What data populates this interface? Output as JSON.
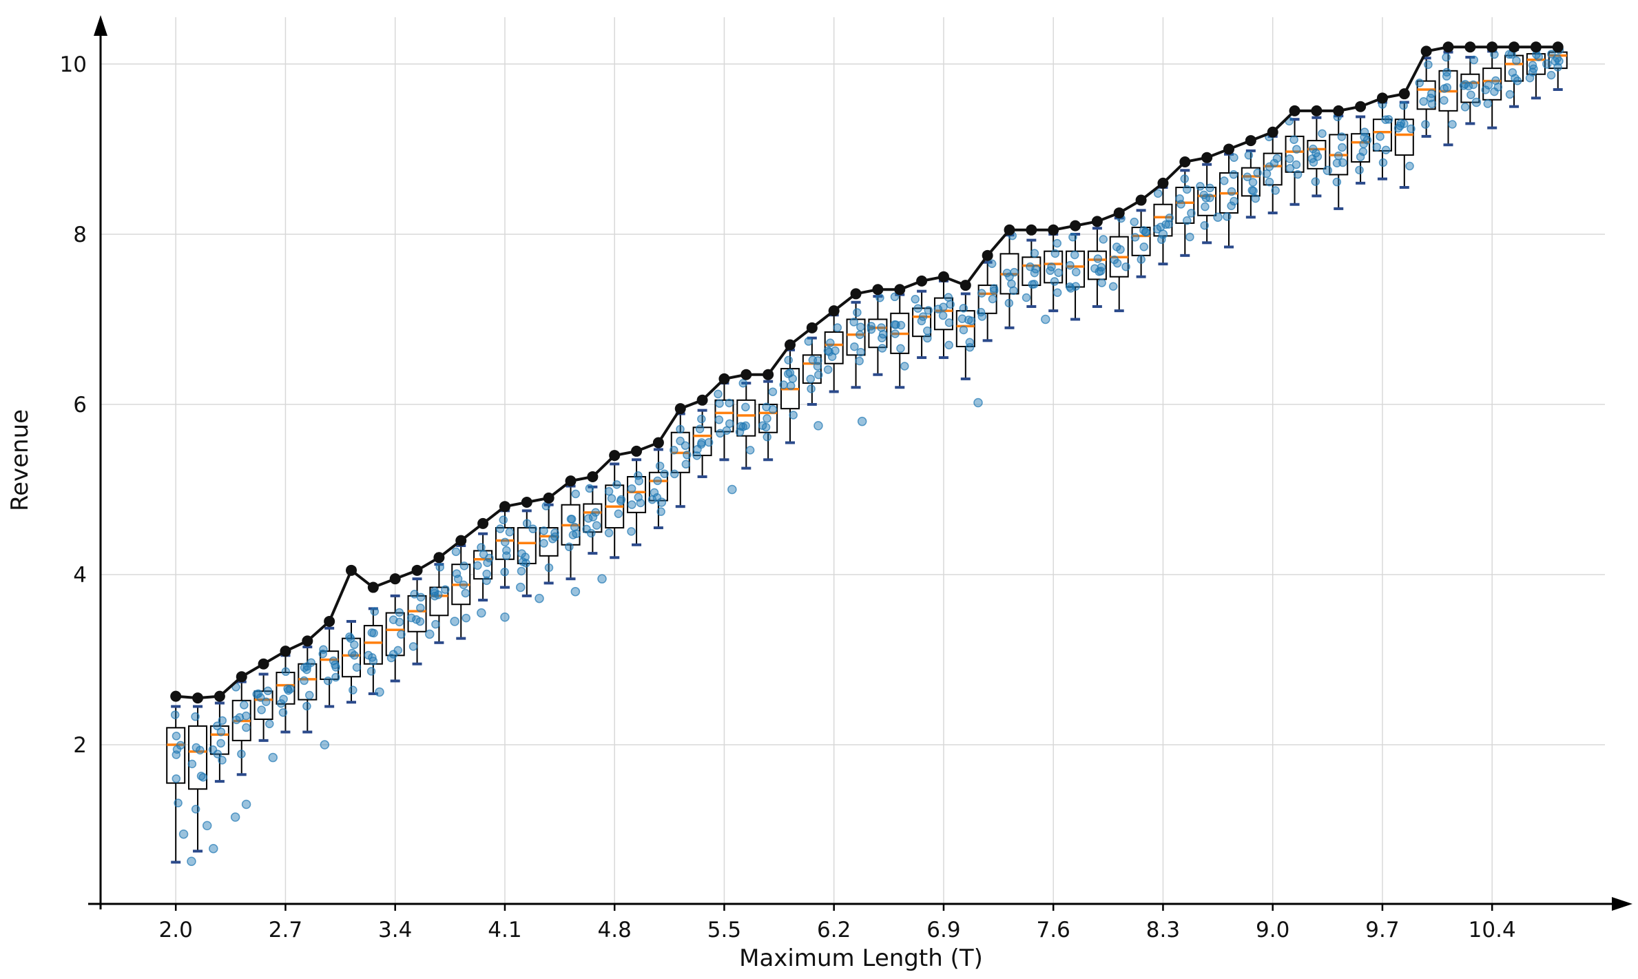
{
  "figure": {
    "background": "#ffffff"
  },
  "chart_data": {
    "type": "boxplot",
    "title": "",
    "xlabel": "Maximum Length (T)",
    "ylabel": "Revenue",
    "grid": true,
    "legend": "none",
    "xlim": [
      1.52,
      11.12
    ],
    "ylim": [
      0.13,
      10.55
    ],
    "x_tick_values": [
      2.0,
      2.7,
      3.4,
      4.1,
      4.8,
      5.5,
      6.2,
      6.9,
      7.6,
      8.3,
      9.0,
      9.7,
      10.4
    ],
    "x_tick_labels": [
      "2.0",
      "2.7",
      "3.4",
      "4.1",
      "4.8",
      "5.5",
      "6.2",
      "6.9",
      "7.6",
      "8.3",
      "9.0",
      "9.7",
      "10.4"
    ],
    "y_tick_values": [
      2,
      4,
      6,
      8,
      10
    ],
    "y_tick_labels": [
      "2",
      "4",
      "6",
      "8",
      "10"
    ],
    "colors": {
      "box_edge": "#000000",
      "box_fill": "#ffffff",
      "median": "#ff7f0e",
      "whisker": "#000000",
      "cap": "#2b4a8b",
      "scatter": "#1f77b4",
      "outlier": "#1f77b4",
      "max_line": "#111111",
      "grid": "#d8d8d8",
      "axis": "#000000"
    },
    "box_columns": [
      "x",
      "whislo",
      "q1",
      "median",
      "q3",
      "whishi"
    ],
    "boxes": [
      [
        2.0,
        0.62,
        1.55,
        2.0,
        2.2,
        2.45
      ],
      [
        2.14,
        0.75,
        1.48,
        1.92,
        2.22,
        2.45
      ],
      [
        2.28,
        1.57,
        1.89,
        2.12,
        2.22,
        2.49
      ],
      [
        2.42,
        1.65,
        2.05,
        2.28,
        2.52,
        2.74
      ],
      [
        2.56,
        2.05,
        2.3,
        2.53,
        2.63,
        2.83
      ],
      [
        2.7,
        2.15,
        2.48,
        2.7,
        2.85,
        3.05
      ],
      [
        2.84,
        2.15,
        2.53,
        2.77,
        2.95,
        3.15
      ],
      [
        2.98,
        2.45,
        2.77,
        3.0,
        3.1,
        3.37
      ],
      [
        3.12,
        2.5,
        2.8,
        3.05,
        3.25,
        3.45
      ],
      [
        3.26,
        2.6,
        2.95,
        3.2,
        3.4,
        3.6
      ],
      [
        3.4,
        2.75,
        3.05,
        3.35,
        3.55,
        3.75
      ],
      [
        3.54,
        2.95,
        3.33,
        3.57,
        3.75,
        3.95
      ],
      [
        3.68,
        3.2,
        3.52,
        3.75,
        3.85,
        4.12
      ],
      [
        3.82,
        3.25,
        3.65,
        3.88,
        4.12,
        4.34
      ],
      [
        3.96,
        3.7,
        3.95,
        4.18,
        4.28,
        4.48
      ],
      [
        4.1,
        3.85,
        4.18,
        4.4,
        4.55,
        4.75
      ],
      [
        4.24,
        3.75,
        4.13,
        4.37,
        4.55,
        4.75
      ],
      [
        4.38,
        3.9,
        4.22,
        4.45,
        4.55,
        4.82
      ],
      [
        4.52,
        3.95,
        4.35,
        4.58,
        4.82,
        5.04
      ],
      [
        4.66,
        4.25,
        4.5,
        4.73,
        4.83,
        5.03
      ],
      [
        4.8,
        4.2,
        4.55,
        4.8,
        5.05,
        5.3
      ],
      [
        4.94,
        4.35,
        4.73,
        4.97,
        5.15,
        5.35
      ],
      [
        5.08,
        4.55,
        4.87,
        5.1,
        5.2,
        5.47
      ],
      [
        5.22,
        4.8,
        5.2,
        5.43,
        5.67,
        5.89
      ],
      [
        5.36,
        5.15,
        5.4,
        5.63,
        5.73,
        5.93
      ],
      [
        5.5,
        5.35,
        5.68,
        5.9,
        6.05,
        6.25
      ],
      [
        5.64,
        5.25,
        5.63,
        5.87,
        6.05,
        6.25
      ],
      [
        5.78,
        5.35,
        5.67,
        5.9,
        6.0,
        6.27
      ],
      [
        5.92,
        5.55,
        5.95,
        6.18,
        6.42,
        6.64
      ],
      [
        6.06,
        6.0,
        6.25,
        6.48,
        6.58,
        6.78
      ],
      [
        6.2,
        6.15,
        6.48,
        6.7,
        6.85,
        7.05
      ],
      [
        6.34,
        6.2,
        6.58,
        6.82,
        7.0,
        7.2
      ],
      [
        6.48,
        6.35,
        6.67,
        6.9,
        7.0,
        7.27
      ],
      [
        6.62,
        6.2,
        6.6,
        6.83,
        7.07,
        7.29
      ],
      [
        6.76,
        6.55,
        6.8,
        7.03,
        7.13,
        7.33
      ],
      [
        6.9,
        6.55,
        6.88,
        7.1,
        7.25,
        7.45
      ],
      [
        7.04,
        6.3,
        6.68,
        6.92,
        7.1,
        7.3
      ],
      [
        7.18,
        6.75,
        7.07,
        7.3,
        7.4,
        7.67
      ],
      [
        7.32,
        6.9,
        7.3,
        7.53,
        7.77,
        7.99
      ],
      [
        7.46,
        7.15,
        7.4,
        7.63,
        7.73,
        7.93
      ],
      [
        7.6,
        7.1,
        7.43,
        7.65,
        7.8,
        8.0
      ],
      [
        7.74,
        7.0,
        7.38,
        7.62,
        7.8,
        8.0
      ],
      [
        7.88,
        7.15,
        7.47,
        7.7,
        7.8,
        8.07
      ],
      [
        8.02,
        7.1,
        7.5,
        7.73,
        7.97,
        8.19
      ],
      [
        8.16,
        7.5,
        7.75,
        7.98,
        8.08,
        8.28
      ],
      [
        8.3,
        7.65,
        7.98,
        8.2,
        8.35,
        8.55
      ],
      [
        8.44,
        7.75,
        8.13,
        8.37,
        8.55,
        8.75
      ],
      [
        8.58,
        7.9,
        8.22,
        8.45,
        8.55,
        8.82
      ],
      [
        8.72,
        7.85,
        8.25,
        8.48,
        8.72,
        8.94
      ],
      [
        8.86,
        8.2,
        8.45,
        8.68,
        8.78,
        8.98
      ],
      [
        9.0,
        8.25,
        8.58,
        8.8,
        8.95,
        9.15
      ],
      [
        9.14,
        8.35,
        8.73,
        8.97,
        9.15,
        9.35
      ],
      [
        9.28,
        8.45,
        8.77,
        9.0,
        9.1,
        9.37
      ],
      [
        9.42,
        8.3,
        8.7,
        8.93,
        9.17,
        9.39
      ],
      [
        9.56,
        8.6,
        8.85,
        9.08,
        9.18,
        9.38
      ],
      [
        9.7,
        8.65,
        8.98,
        9.2,
        9.35,
        9.55
      ],
      [
        9.84,
        8.55,
        8.93,
        9.17,
        9.35,
        9.55
      ],
      [
        9.98,
        9.15,
        9.47,
        9.7,
        9.8,
        10.07
      ],
      [
        10.12,
        9.05,
        9.45,
        9.68,
        9.92,
        10.14
      ],
      [
        10.26,
        9.3,
        9.55,
        9.78,
        9.88,
        10.08
      ],
      [
        10.4,
        9.25,
        9.58,
        9.8,
        9.95,
        10.15
      ],
      [
        10.54,
        9.5,
        9.8,
        10.0,
        10.1,
        10.17
      ],
      [
        10.68,
        9.6,
        9.88,
        10.05,
        10.12,
        10.18
      ],
      [
        10.82,
        9.7,
        9.95,
        10.1,
        10.14,
        10.18
      ]
    ],
    "max_line": {
      "name": "maximum-revenue-envelope",
      "x": [
        2.0,
        2.14,
        2.28,
        2.42,
        2.56,
        2.7,
        2.84,
        2.98,
        3.12,
        3.26,
        3.4,
        3.54,
        3.68,
        3.82,
        3.96,
        4.1,
        4.24,
        4.38,
        4.52,
        4.66,
        4.8,
        4.94,
        5.08,
        5.22,
        5.36,
        5.5,
        5.64,
        5.78,
        5.92,
        6.06,
        6.2,
        6.34,
        6.48,
        6.62,
        6.76,
        6.9,
        7.04,
        7.18,
        7.32,
        7.46,
        7.6,
        7.74,
        7.88,
        8.02,
        8.16,
        8.3,
        8.44,
        8.58,
        8.72,
        8.86,
        9.0,
        9.14,
        9.28,
        9.42,
        9.56,
        9.7,
        9.84,
        9.98,
        10.12,
        10.26,
        10.4,
        10.54,
        10.68,
        10.82
      ],
      "y": [
        2.57,
        2.55,
        2.57,
        2.8,
        2.95,
        3.1,
        3.22,
        3.45,
        4.05,
        3.85,
        3.95,
        4.05,
        4.2,
        4.4,
        4.6,
        4.8,
        4.85,
        4.9,
        5.1,
        5.15,
        5.4,
        5.45,
        5.55,
        5.95,
        6.05,
        6.3,
        6.35,
        6.35,
        6.7,
        6.9,
        7.1,
        7.3,
        7.35,
        7.35,
        7.45,
        7.5,
        7.4,
        7.75,
        8.05,
        8.05,
        8.05,
        8.1,
        8.15,
        8.25,
        8.4,
        8.6,
        8.85,
        8.9,
        9.0,
        9.1,
        9.2,
        9.45,
        9.45,
        9.45,
        9.5,
        9.6,
        9.65,
        10.15,
        10.2,
        10.2,
        10.2,
        10.2,
        10.2,
        10.2
      ]
    },
    "outliers": [
      [
        2.05,
        0.95
      ],
      [
        2.1,
        0.63
      ],
      [
        2.2,
        1.05
      ],
      [
        2.24,
        0.78
      ],
      [
        2.38,
        1.15
      ],
      [
        2.45,
        1.3
      ],
      [
        2.62,
        1.85
      ],
      [
        2.95,
        2.0
      ],
      [
        3.3,
        2.62
      ],
      [
        3.62,
        3.3
      ],
      [
        3.78,
        3.45
      ],
      [
        3.95,
        3.55
      ],
      [
        4.1,
        3.5
      ],
      [
        4.2,
        3.85
      ],
      [
        4.32,
        3.72
      ],
      [
        4.55,
        3.8
      ],
      [
        4.72,
        3.95
      ],
      [
        5.1,
        4.85
      ],
      [
        5.55,
        5.0
      ],
      [
        6.1,
        5.75
      ],
      [
        6.38,
        5.8
      ],
      [
        7.12,
        6.02
      ],
      [
        7.55,
        7.0
      ],
      [
        8.3,
        8.0
      ],
      [
        8.65,
        8.2
      ],
      [
        9.35,
        8.75
      ],
      [
        10.3,
        9.55
      ],
      [
        10.75,
        10.0
      ]
    ]
  }
}
